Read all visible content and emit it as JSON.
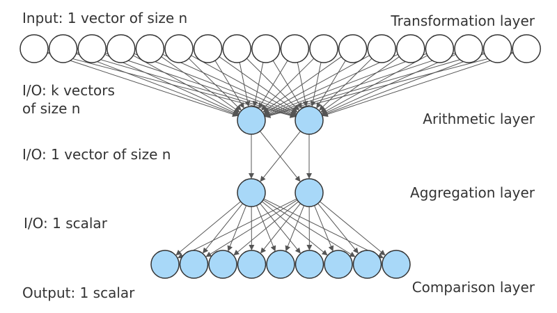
{
  "labels": {
    "input": "Input: 1 vector of size n",
    "transformation": "Transformation layer",
    "io_k_line1": "I/O: k vectors",
    "io_k_line2": "of size n",
    "arithmetic": "Arithmetic layer",
    "io_vector": "I/O: 1 vector of size n",
    "aggregation": "Aggregation layer",
    "io_scalar": "I/O: 1 scalar",
    "output": "Output: 1 scalar",
    "comparison": "Comparison layer"
  },
  "layers": {
    "transformation": {
      "node_count": 18,
      "fill": "#ffffff"
    },
    "arithmetic": {
      "node_count": 2,
      "fill": "#a8d8f8"
    },
    "aggregation": {
      "node_count": 2,
      "fill": "#a8d8f8"
    },
    "comparison": {
      "node_count": 9,
      "fill": "#a8d8f8"
    }
  },
  "colors": {
    "node_stroke": "#333333",
    "edge": "#555555",
    "text": "#333333"
  }
}
